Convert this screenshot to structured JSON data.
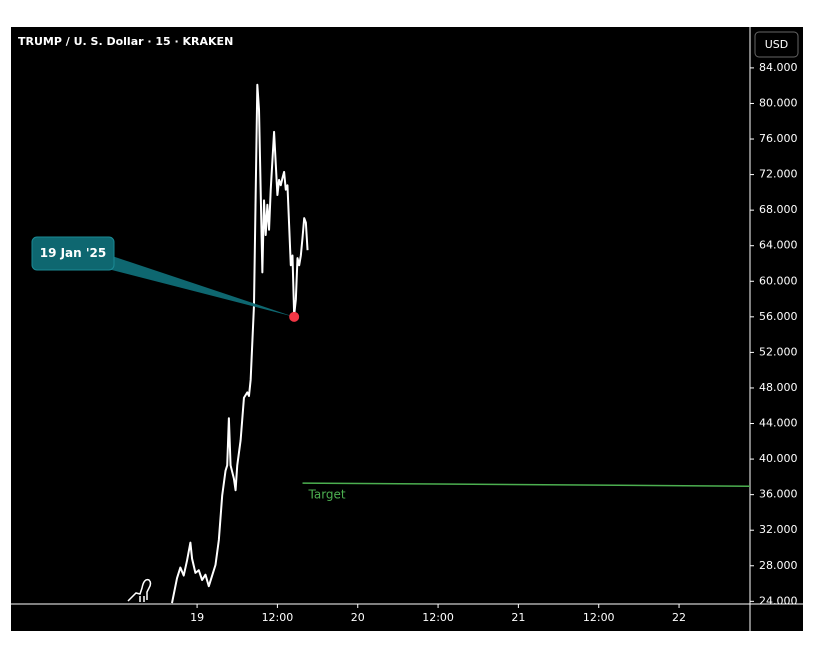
{
  "chart_data": {
    "type": "line",
    "title": "TRUMP / U. S. Dollar · 15 · KRAKEN",
    "currency": "USD",
    "x": [
      "2025-01-18T20:15",
      "2025-01-18T21:00",
      "2025-01-18T21:30",
      "2025-01-18T22:00",
      "2025-01-18T22:30",
      "2025-01-18T23:00",
      "2025-01-18T23:15",
      "2025-01-18T23:45",
      "2025-01-19T00:15",
      "2025-01-19T00:45",
      "2025-01-19T01:15",
      "2025-01-19T01:45",
      "2025-01-19T02:15",
      "2025-01-19T02:45",
      "2025-01-19T03:15",
      "2025-01-19T03:45",
      "2025-01-19T04:15",
      "2025-01-19T04:30",
      "2025-01-19T04:45",
      "2025-01-19T05:00",
      "2025-01-19T05:30",
      "2025-01-19T05:45",
      "2025-01-19T06:00",
      "2025-01-19T06:30",
      "2025-01-19T07:00",
      "2025-01-19T07:30",
      "2025-01-19T07:45",
      "2025-01-19T08:00",
      "2025-01-19T08:30",
      "2025-01-19T09:00",
      "2025-01-19T09:15",
      "2025-01-19T09:45",
      "2025-01-19T10:00",
      "2025-01-19T10:15",
      "2025-01-19T10:30",
      "2025-01-19T10:45",
      "2025-01-19T11:00",
      "2025-01-19T11:30",
      "2025-01-19T12:00",
      "2025-01-19T12:15",
      "2025-01-19T12:30",
      "2025-01-19T12:45",
      "2025-01-19T13:00",
      "2025-01-19T13:15",
      "2025-01-19T13:30",
      "2025-01-19T13:45",
      "2025-01-19T14:00",
      "2025-01-19T14:15",
      "2025-01-19T14:30",
      "2025-01-19T14:45",
      "2025-01-19T15:00",
      "2025-01-19T15:15",
      "2025-01-19T15:30",
      "2025-01-19T15:45",
      "2025-01-19T16:00",
      "2025-01-19T16:15",
      "2025-01-19T16:30"
    ],
    "series": [
      {
        "color": "#ffffff",
        "values": [
          23.8,
          26.6,
          27.8,
          26.9,
          28.6,
          30.6,
          28.8,
          27.2,
          27.5,
          26.4,
          27.0,
          25.7,
          26.9,
          28.1,
          30.9,
          35.9,
          38.7,
          39.3,
          44.6,
          39.3,
          37.8,
          36.5,
          39.3,
          42.1,
          46.9,
          47.5,
          47.1,
          48.9,
          57.3,
          82.1,
          79.3,
          61.0,
          69.1,
          65.2,
          68.6,
          65.8,
          70.3,
          76.8,
          69.7,
          71.4,
          70.8,
          71.6,
          72.3,
          70.3,
          70.8,
          66.3,
          61.8,
          62.9,
          56.2,
          57.9,
          62.6,
          61.8,
          62.9,
          64.9,
          67.1,
          66.6,
          63.5
        ]
      }
    ],
    "xlim": [
      "2025-01-17T20:12",
      "2025-01-22T10:36"
    ],
    "ylim": [
      23.7,
      88.6
    ],
    "xticks": [
      {
        "value": "2025-01-19T00:00",
        "label": "19"
      },
      {
        "value": "2025-01-19T12:00",
        "label": "12:00"
      },
      {
        "value": "2025-01-20T00:00",
        "label": "20"
      },
      {
        "value": "2025-01-20T12:00",
        "label": "12:00"
      },
      {
        "value": "2025-01-21T00:00",
        "label": "21"
      },
      {
        "value": "2025-01-21T12:00",
        "label": "12:00"
      },
      {
        "value": "2025-01-22T00:00",
        "label": "22"
      }
    ],
    "yticks": [
      {
        "value": 24,
        "label": "24.000"
      },
      {
        "value": 28,
        "label": "28.000"
      },
      {
        "value": 32,
        "label": "32.000"
      },
      {
        "value": 36,
        "label": "36.000"
      },
      {
        "value": 40,
        "label": "40.000"
      },
      {
        "value": 44,
        "label": "44.000"
      },
      {
        "value": 48,
        "label": "48.000"
      },
      {
        "value": 52,
        "label": "52.000"
      },
      {
        "value": 56,
        "label": "56.000"
      },
      {
        "value": 60,
        "label": "60.000"
      },
      {
        "value": 64,
        "label": "64.000"
      },
      {
        "value": 68,
        "label": "68.000"
      },
      {
        "value": 72,
        "label": "72.000"
      },
      {
        "value": 76,
        "label": "76.000"
      },
      {
        "value": 80,
        "label": "80.000"
      },
      {
        "value": 84,
        "label": "84.000"
      }
    ],
    "marker": {
      "x": "2025-01-19T14:30",
      "value": 56.0,
      "label": "19 Jan '25",
      "color": "#f23645"
    },
    "target": {
      "label": "Target",
      "x": [
        "2025-01-19T15:45",
        "2025-01-22T10:36"
      ],
      "values": [
        37.3,
        36.95
      ],
      "color": "#4caf50"
    }
  }
}
